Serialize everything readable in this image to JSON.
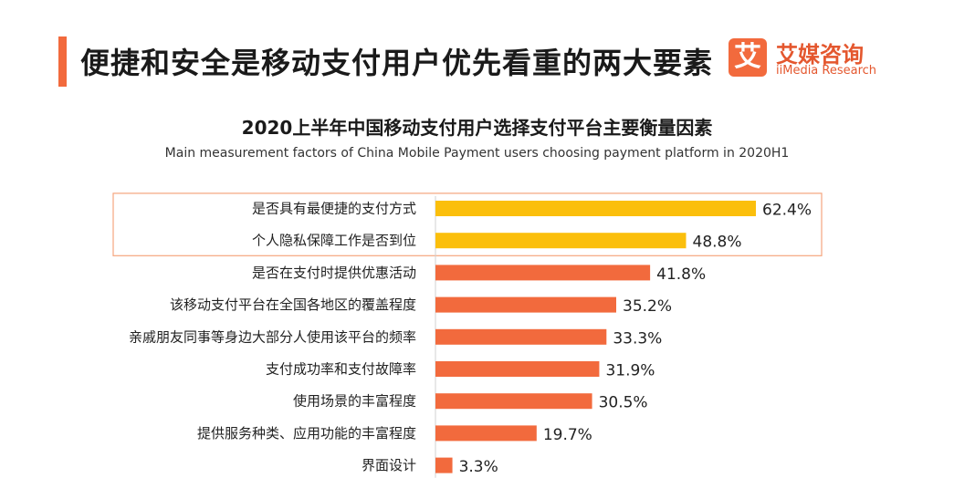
{
  "header": {
    "title": "便捷和安全是移动支付用户优先看重的两大要素",
    "brand_mark": "艾",
    "brand_name": "艾媒咨询",
    "brand_sub": "iiMedia Research"
  },
  "colors": {
    "accent": "#f26a3d",
    "highlight_bar": "#fbbf0c",
    "normal_bar": "#f26a3d",
    "highlight_box": "#f5a57e"
  },
  "chart_data": {
    "type": "bar",
    "orientation": "horizontal",
    "title": "2020上半年中国移动支付用户选择支付平台主要衡量因素",
    "subtitle": "Main measurement factors of China Mobile Payment users choosing payment platform in 2020H1",
    "categories": [
      "是否具有最便捷的支付方式",
      "个人隐私保障工作是否到位",
      "是否在支付时提供优惠活动",
      "该移动支付平台在全国各地区的覆盖程度",
      "亲戚朋友同事等身边大部分人使用该平台的频率",
      "支付成功率和支付故障率",
      "使用场景的丰富程度",
      "提供服务种类、应用功能的丰富程度",
      "界面设计"
    ],
    "values": [
      62.4,
      48.8,
      41.8,
      35.2,
      33.3,
      31.9,
      30.5,
      19.7,
      3.3
    ],
    "value_labels": [
      "62.4%",
      "48.8%",
      "41.8%",
      "35.2%",
      "33.3%",
      "31.9%",
      "30.5%",
      "19.7%",
      "3.3%"
    ],
    "highlighted": [
      true,
      true,
      false,
      false,
      false,
      false,
      false,
      false,
      false
    ],
    "xlim": [
      0,
      70
    ],
    "grid": false,
    "legend": "none"
  }
}
